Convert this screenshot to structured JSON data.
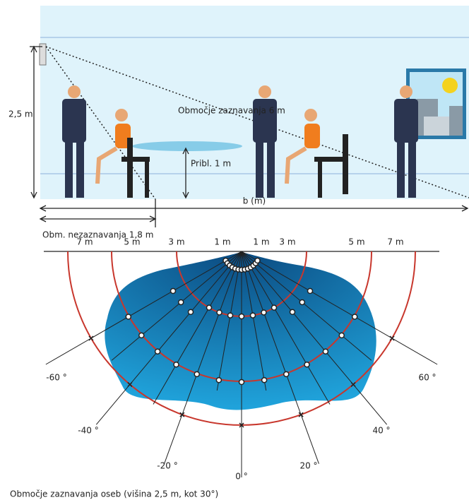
{
  "side_view": {
    "height_label": "2,5 m",
    "detection_label": "Območje zaznavanja 6 m",
    "approx_label": "Pribl. 1 m",
    "b_label": "b (m)",
    "non_detection_label": "Obm. nezaznavanja 1,8 m"
  },
  "top_view": {
    "distance_labels": [
      "7 m",
      "5 m",
      "3 m",
      "1 m",
      "1 m",
      "3 m",
      "5 m",
      "7 m"
    ],
    "angle_labels": [
      "-60 °",
      "-40 °",
      "-20 °",
      "0 °",
      "20 °",
      "40 °",
      "60 °"
    ]
  },
  "caption": "Območje zaznavanja oseb (višina 2,5 m, kot 30°)"
}
